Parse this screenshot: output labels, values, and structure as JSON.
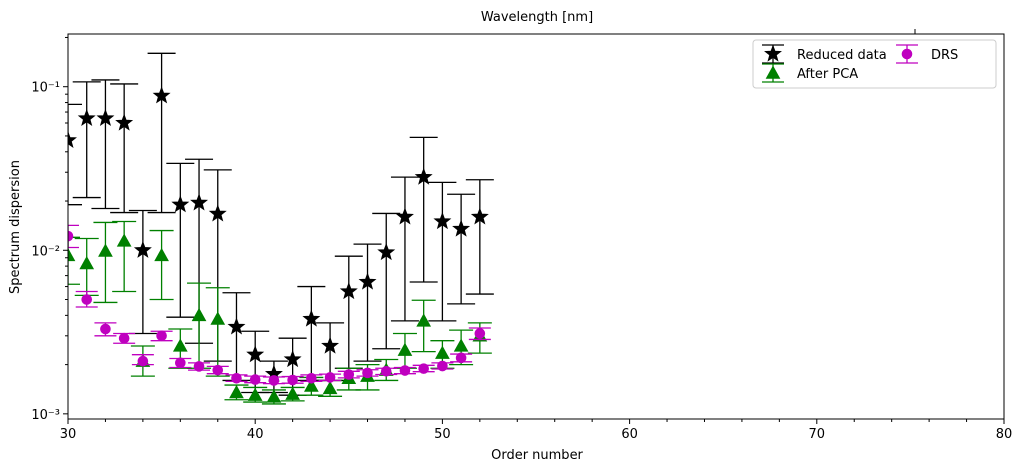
{
  "chart_data": {
    "type": "scatter",
    "title": "",
    "xlabel": "Order number",
    "ylabel": "Spectrum dispersion",
    "top_xlabel": "Wavelength [nm]",
    "xlim": [
      30,
      80
    ],
    "ylim": [
      0.00093,
      0.21
    ],
    "yscale": "log",
    "grid": false,
    "legend_position": "top-right",
    "x_ticks": [
      30,
      40,
      50,
      60,
      70,
      80
    ],
    "x_tick_labels": [
      "30",
      "40",
      "50",
      "60",
      "70",
      "80"
    ],
    "y_ticks": [
      0.001,
      0.01,
      0.1
    ],
    "y_tick_labels": [
      "10⁻³",
      "10⁻²",
      "10⁻¹"
    ],
    "series": [
      {
        "name": "Reduced data",
        "color": "#000000",
        "marker": "star",
        "x": [
          30,
          31,
          32,
          33,
          34,
          35,
          36,
          37,
          38,
          39,
          40,
          41,
          42,
          43,
          44,
          45,
          46,
          47,
          48,
          49,
          50,
          51,
          52
        ],
        "y": [
          0.047,
          0.064,
          0.064,
          0.06,
          0.01,
          0.088,
          0.019,
          0.0195,
          0.0167,
          0.0034,
          0.0023,
          0.00175,
          0.00215,
          0.0038,
          0.0026,
          0.0056,
          0.0064,
          0.0097,
          0.016,
          0.028,
          0.015,
          0.0135,
          0.016
        ],
        "ylow": [
          0.019,
          0.021,
          0.018,
          0.017,
          0.0031,
          0.017,
          0.0039,
          0.0027,
          0.0021,
          0.0016,
          0.00135,
          0.00135,
          0.0013,
          0.0016,
          0.0016,
          0.0019,
          0.0021,
          0.0025,
          0.0037,
          0.0064,
          0.0037,
          0.0047,
          0.0054
        ],
        "yhigh": [
          0.078,
          0.107,
          0.11,
          0.104,
          0.0175,
          0.16,
          0.034,
          0.036,
          0.031,
          0.0055,
          0.0032,
          0.0021,
          0.0029,
          0.006,
          0.0036,
          0.0092,
          0.0109,
          0.0168,
          0.028,
          0.049,
          0.026,
          0.022,
          0.027
        ]
      },
      {
        "name": "After PCA",
        "color": "#008000",
        "marker": "triangle",
        "x": [
          30,
          31,
          32,
          33,
          34,
          35,
          36,
          37,
          38,
          39,
          40,
          41,
          42,
          43,
          44,
          45,
          46,
          47,
          48,
          49,
          50,
          51,
          52
        ],
        "y": [
          0.0093,
          0.0083,
          0.0099,
          0.0114,
          0.0021,
          0.0093,
          0.0026,
          0.004,
          0.0038,
          0.00135,
          0.0013,
          0.00127,
          0.00132,
          0.00148,
          0.00143,
          0.00165,
          0.0017,
          0.00185,
          0.00245,
          0.0037,
          0.00235,
          0.0026,
          0.003
        ],
        "ylow": [
          0.0062,
          0.0053,
          0.0048,
          0.0056,
          0.0017,
          0.005,
          0.0019,
          0.0019,
          0.0017,
          0.00122,
          0.00118,
          0.00115,
          0.0012,
          0.0013,
          0.00128,
          0.0014,
          0.0014,
          0.0016,
          0.0019,
          0.0024,
          0.0019,
          0.002,
          0.00235
        ],
        "yhigh": [
          0.012,
          0.0118,
          0.0148,
          0.015,
          0.0026,
          0.0132,
          0.0033,
          0.0063,
          0.0059,
          0.0015,
          0.00145,
          0.0014,
          0.00145,
          0.00167,
          0.0016,
          0.0019,
          0.002,
          0.00215,
          0.0031,
          0.00495,
          0.0028,
          0.00325,
          0.0036
        ]
      },
      {
        "name": "DRS",
        "color": "#bf00bf",
        "marker": "circle",
        "x": [
          30,
          31,
          32,
          33,
          34,
          35,
          36,
          37,
          38,
          39,
          40,
          41,
          42,
          43,
          44,
          45,
          46,
          47,
          48,
          49,
          50,
          51,
          52
        ],
        "y": [
          0.0122,
          0.005,
          0.0033,
          0.0029,
          0.0021,
          0.003,
          0.00205,
          0.00195,
          0.00185,
          0.00165,
          0.00162,
          0.0016,
          0.00161,
          0.00165,
          0.00167,
          0.00174,
          0.00178,
          0.00182,
          0.00184,
          0.00189,
          0.00196,
          0.0022,
          0.0031
        ],
        "ylow": [
          0.0104,
          0.0045,
          0.003,
          0.0027,
          0.002,
          0.0028,
          0.00192,
          0.00185,
          0.00176,
          0.00158,
          0.00155,
          0.00153,
          0.00154,
          0.00158,
          0.0016,
          0.00166,
          0.0017,
          0.00174,
          0.00176,
          0.00181,
          0.00188,
          0.00208,
          0.00285
        ],
        "yhigh": [
          0.0142,
          0.0056,
          0.0036,
          0.0031,
          0.0023,
          0.0032,
          0.00218,
          0.00205,
          0.00195,
          0.00173,
          0.0017,
          0.00168,
          0.00169,
          0.00173,
          0.00175,
          0.00182,
          0.00186,
          0.0019,
          0.00192,
          0.00198,
          0.00205,
          0.00232,
          0.00335
        ]
      }
    ]
  }
}
